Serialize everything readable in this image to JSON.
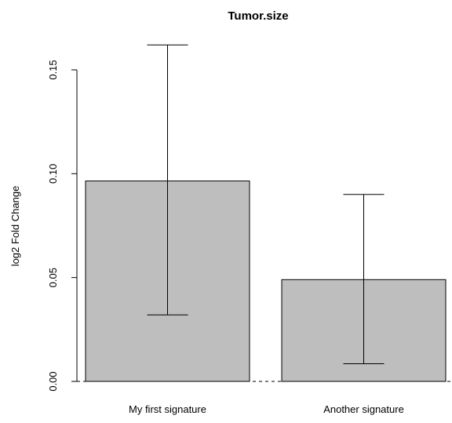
{
  "chart_data": {
    "type": "bar",
    "title": "Tumor.size",
    "xlabel": "",
    "ylabel": "log2 Fold Change",
    "categories": [
      "My first signature",
      "Another signature"
    ],
    "values": [
      0.0965,
      0.049
    ],
    "error_low": [
      0.032,
      0.0085
    ],
    "error_high": [
      0.162,
      0.09
    ],
    "ylim": [
      0,
      0.17
    ],
    "yticks": [
      0.0,
      0.05,
      0.1,
      0.15
    ],
    "ytick_labels": [
      "0.00",
      "0.05",
      "0.10",
      "0.15"
    ],
    "grid": false,
    "baseline_style": "dashed",
    "bar_color": "#bebebe",
    "bar_edge_color": "#000000"
  }
}
